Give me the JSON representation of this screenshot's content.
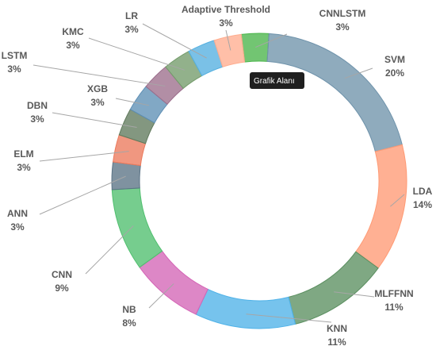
{
  "chart_data": {
    "type": "pie",
    "subtype": "donut",
    "title": "",
    "legend": "none",
    "slices": [
      {
        "name": "CNNLSTM",
        "value": 3,
        "label": "3%",
        "color": "#4ab54a"
      },
      {
        "name": "SVM",
        "value": 20,
        "label": "20%",
        "color": "#6f93ab"
      },
      {
        "name": "LDA",
        "value": 14,
        "label": "14%",
        "color": "#ff9a74"
      },
      {
        "name": "MLFFNN",
        "value": 11,
        "label": "11%",
        "color": "#5b8f60"
      },
      {
        "name": "KNN",
        "value": 11,
        "label": "11%",
        "color": "#4fb2e8"
      },
      {
        "name": "NB",
        "value": 8,
        "label": "8%",
        "color": "#d465b6"
      },
      {
        "name": "CNN",
        "value": 9,
        "label": "9%",
        "color": "#4fbf6e"
      },
      {
        "name": "ANN",
        "value": 3,
        "label": "3%",
        "color": "#5b7385"
      },
      {
        "name": "ELM",
        "value": 3,
        "label": "3%",
        "color": "#ec7a5c"
      },
      {
        "name": "DBN",
        "value": 3,
        "label": "3%",
        "color": "#607a5c"
      },
      {
        "name": "XGB",
        "value": 3,
        "label": "3%",
        "color": "#5e8fb5"
      },
      {
        "name": "LSTM",
        "value": 3,
        "label": "3%",
        "color": "#9c6e8c"
      },
      {
        "name": "KMC",
        "value": 3,
        "label": "3%",
        "color": "#739b6a"
      },
      {
        "name": "LR",
        "value": 3,
        "label": "3%",
        "color": "#55b0e0"
      },
      {
        "name": "Adaptive Threshold",
        "value": 3,
        "label": "3%",
        "color": "#ffad8f"
      }
    ]
  },
  "tooltip": {
    "text": "Grafik Alanı"
  }
}
